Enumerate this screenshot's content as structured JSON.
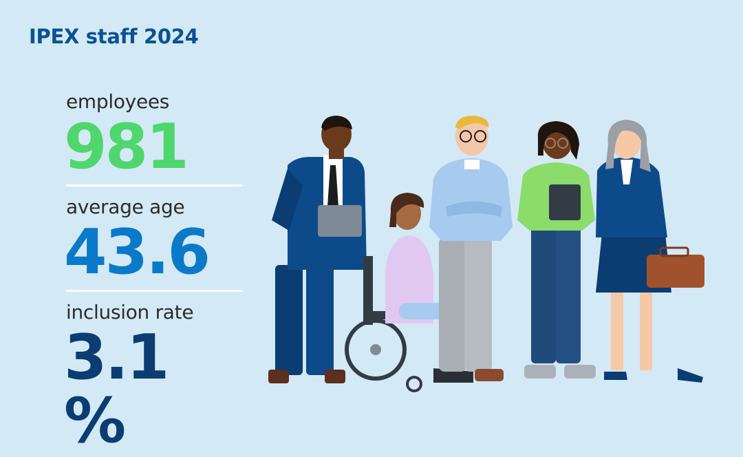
{
  "title": "IPEX staff 2024",
  "stats": [
    {
      "label": "employees",
      "value": "981",
      "color": "#4fd66c"
    },
    {
      "label": "average age",
      "value": "43.6",
      "color": "#0a79c9"
    },
    {
      "label": "inclusion rate",
      "value": "3.1 %",
      "color": "#0b3c72"
    }
  ],
  "colors": {
    "background": "#d3e9f6",
    "title": "#0a5291",
    "divider": "#ffffff"
  },
  "illustration": {
    "people": [
      "man-in-navy-suit-with-tablet",
      "woman-in-wheelchair",
      "man-with-glasses-light-blue-sweater",
      "woman-green-sweater-with-tablet",
      "woman-navy-blazer-with-briefcase"
    ]
  }
}
